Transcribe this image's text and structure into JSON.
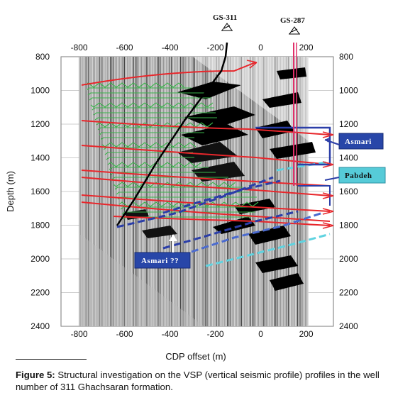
{
  "figure": {
    "wells": [
      {
        "name": "GS-311",
        "offset": -190
      },
      {
        "name": "GS-287",
        "offset": 155
      }
    ],
    "x_axis": {
      "label": "CDP offset (m)",
      "ticks": [
        "-800",
        "-600",
        "-400",
        "-200",
        "0",
        "200"
      ],
      "tick_values": [
        -800,
        -600,
        -400,
        -200,
        0,
        200
      ],
      "range": [
        -880,
        320
      ]
    },
    "y_axis": {
      "label": "Depth (m)",
      "ticks": [
        "800",
        "1000",
        "1200",
        "1400",
        "1600",
        "1800",
        "2000",
        "2200",
        "2400"
      ],
      "tick_values": [
        800,
        1000,
        1200,
        1400,
        1600,
        1800,
        2000,
        2200,
        2400
      ],
      "range": [
        800,
        2400
      ]
    },
    "labels": {
      "asmari": "Asmari",
      "pabdeh": "Pabdeh",
      "asmari_q": "Asmari ??"
    },
    "colors": {
      "horizon": "#e8262b",
      "green": "#39b54a",
      "blue": "#2b3ea8",
      "cyan": "#5fd3e0",
      "well_path": "#000000",
      "gs287_path": "#e0306a",
      "label_box": "#2846a8",
      "pabdeh_box": "#56cbd8"
    }
  },
  "caption": {
    "prefix": "Figure 5:",
    "text": " Structural investigation on the VSP (vertical seismic profile) profiles in the well number of 311 Ghachsaran formation."
  }
}
